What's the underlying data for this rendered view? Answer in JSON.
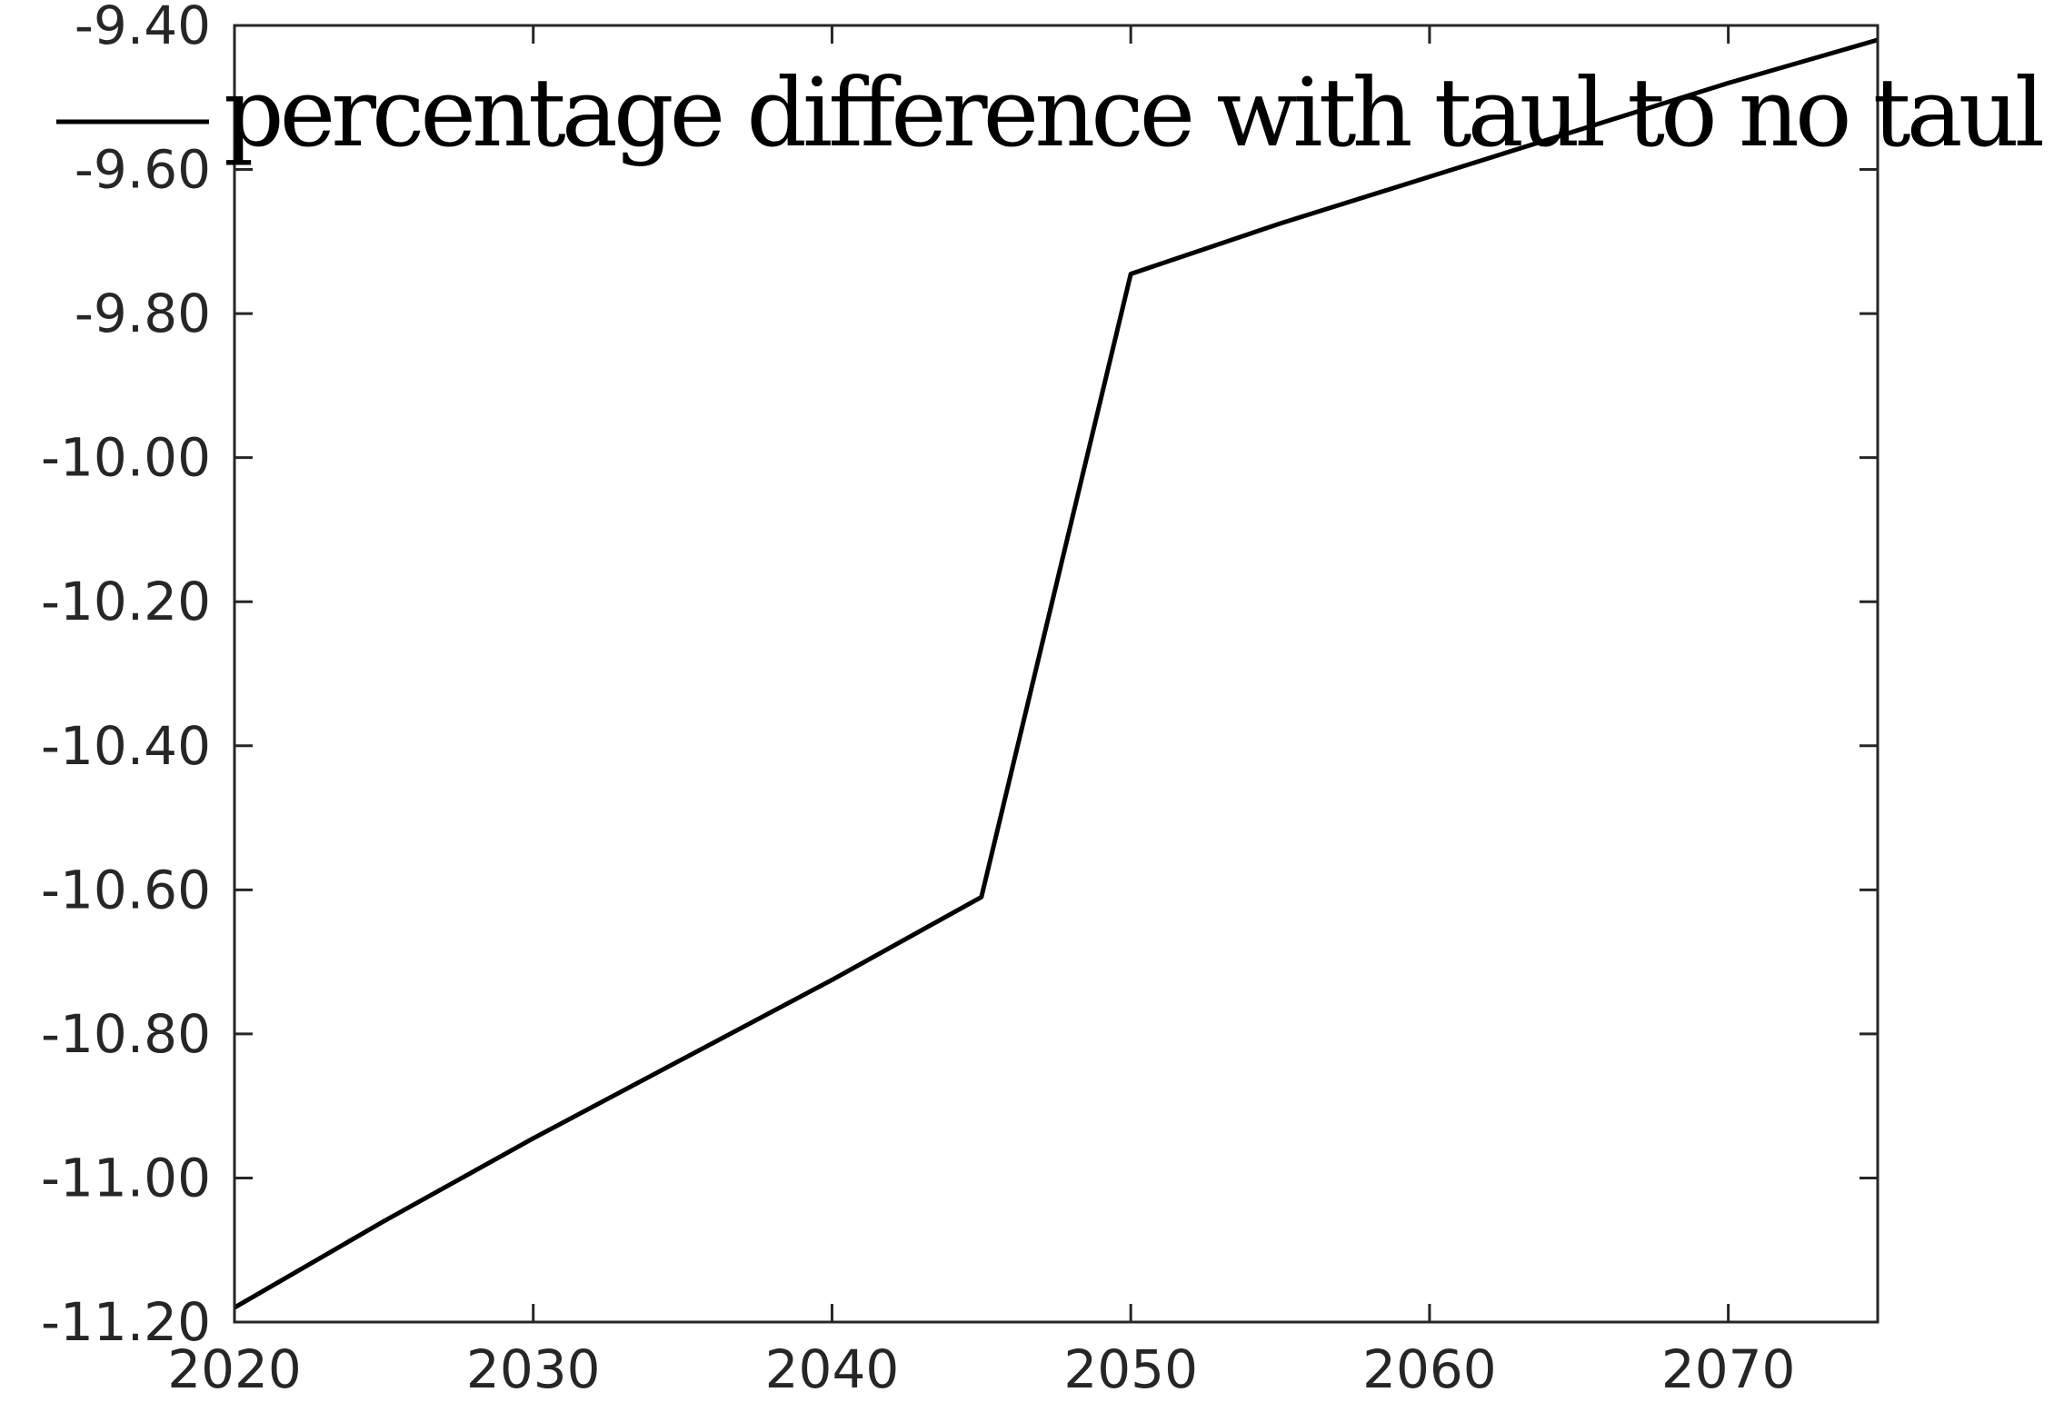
{
  "chart_data": {
    "type": "line",
    "title": "",
    "xlabel": "",
    "ylabel": "",
    "xlim": [
      2020,
      2075
    ],
    "ylim": [
      -11.2,
      -9.4
    ],
    "grid": false,
    "legend_position": "top",
    "x_ticks": [
      2020,
      2030,
      2040,
      2050,
      2060,
      2070
    ],
    "x_tick_labels": [
      "2020",
      "2030",
      "2040",
      "2050",
      "2060",
      "2070"
    ],
    "y_ticks": [
      -9.4,
      -9.6,
      -9.8,
      -10.0,
      -10.2,
      -10.4,
      -10.6,
      -10.8,
      -11.0,
      -11.2
    ],
    "y_tick_labels": [
      "-9.40",
      "-9.60",
      "-9.80",
      "-10.00",
      "-10.20",
      "-10.40",
      "-10.60",
      "-10.80",
      "-11.00",
      "-11.20"
    ],
    "series": [
      {
        "name": "percentage difference with taul to no taul",
        "color": "#000000",
        "x": [
          2020,
          2025,
          2030,
          2035,
          2040,
          2045,
          2050,
          2055,
          2060,
          2065,
          2070,
          2075
        ],
        "y": [
          -11.18,
          -11.06,
          -10.945,
          -10.835,
          -10.725,
          -10.61,
          -9.745,
          -9.675,
          -9.61,
          -9.545,
          -9.48,
          -9.42
        ]
      }
    ]
  }
}
